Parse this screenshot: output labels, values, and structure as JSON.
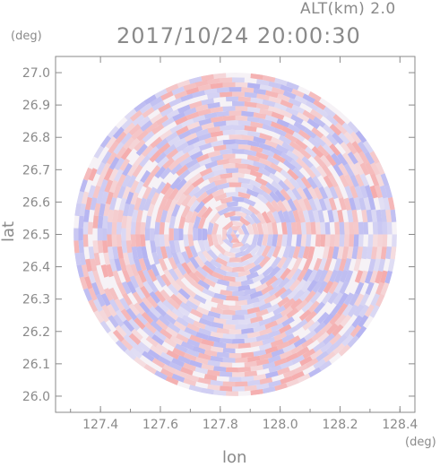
{
  "header": {
    "alt_label": "ALT(km)  2.0",
    "datetime": "2017/10/24 20:00:30"
  },
  "chart_data": {
    "type": "heatmap",
    "title": "2017/10/24 20:00:30",
    "xlabel": "lon",
    "ylabel": "lat",
    "x_unit": "(deg)",
    "y_unit": "(deg)",
    "xlim": [
      127.25,
      128.45
    ],
    "ylim": [
      25.95,
      27.05
    ],
    "x_ticks": [
      "127.4",
      "127.6",
      "127.8",
      "128.0",
      "128.2",
      "128.4"
    ],
    "x_tick_values": [
      127.4,
      127.6,
      127.8,
      128.0,
      128.2,
      128.4
    ],
    "y_ticks": [
      "26.0",
      "26.1",
      "26.2",
      "26.3",
      "26.4",
      "26.5",
      "26.6",
      "26.7",
      "26.8",
      "26.9",
      "27.0"
    ],
    "y_tick_values": [
      26.0,
      26.1,
      26.2,
      26.3,
      26.4,
      26.5,
      26.6,
      26.7,
      26.8,
      26.9,
      27.0
    ],
    "radar_center": [
      127.85,
      26.5
    ],
    "radar_radius_lat": 0.5,
    "colors": {
      "positive": "#f4a0a0",
      "negative": "#a8a8f0",
      "axis": "#8a8a8a"
    },
    "grid": false
  }
}
